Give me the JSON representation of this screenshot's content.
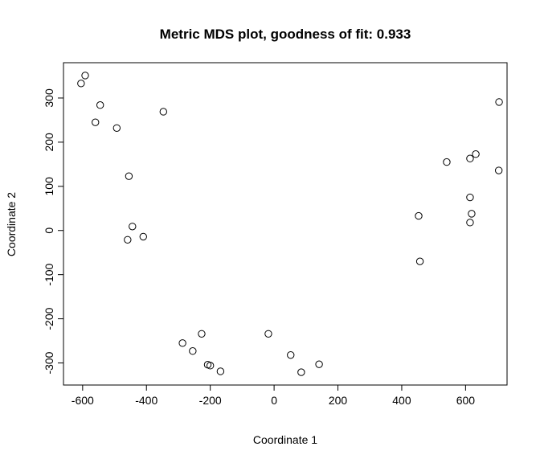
{
  "chart_data": {
    "type": "scatter",
    "title": "Metric MDS plot, goodness of fit:  0.933",
    "xlabel": "Coordinate 1",
    "ylabel": "Coordinate 2",
    "xlim": [
      -660,
      730
    ],
    "ylim": [
      -350,
      380
    ],
    "xticks": [
      -600,
      -400,
      -200,
      0,
      200,
      400,
      600
    ],
    "yticks": [
      -300,
      -200,
      -100,
      0,
      100,
      200,
      300
    ],
    "grid": false,
    "legend": "none",
    "marker": "open-circle",
    "points": [
      {
        "x": -605,
        "y": 333
      },
      {
        "x": -592,
        "y": 351
      },
      {
        "x": -545,
        "y": 284
      },
      {
        "x": -560,
        "y": 245
      },
      {
        "x": -493,
        "y": 232
      },
      {
        "x": -347,
        "y": 269
      },
      {
        "x": -455,
        "y": 123
      },
      {
        "x": -444,
        "y": 9
      },
      {
        "x": -410,
        "y": -14
      },
      {
        "x": -459,
        "y": -21
      },
      {
        "x": -287,
        "y": -255
      },
      {
        "x": -227,
        "y": -234
      },
      {
        "x": -255,
        "y": -273
      },
      {
        "x": -208,
        "y": -304
      },
      {
        "x": -200,
        "y": -306
      },
      {
        "x": -168,
        "y": -319
      },
      {
        "x": -18,
        "y": -234
      },
      {
        "x": 52,
        "y": -282
      },
      {
        "x": 85,
        "y": -321
      },
      {
        "x": 141,
        "y": -303
      },
      {
        "x": 453,
        "y": 33
      },
      {
        "x": 457,
        "y": -70
      },
      {
        "x": 541,
        "y": 155
      },
      {
        "x": 614,
        "y": 163
      },
      {
        "x": 632,
        "y": 173
      },
      {
        "x": 614,
        "y": 75
      },
      {
        "x": 619,
        "y": 38
      },
      {
        "x": 614,
        "y": 18
      },
      {
        "x": 705,
        "y": 291
      },
      {
        "x": 704,
        "y": 136
      }
    ]
  }
}
